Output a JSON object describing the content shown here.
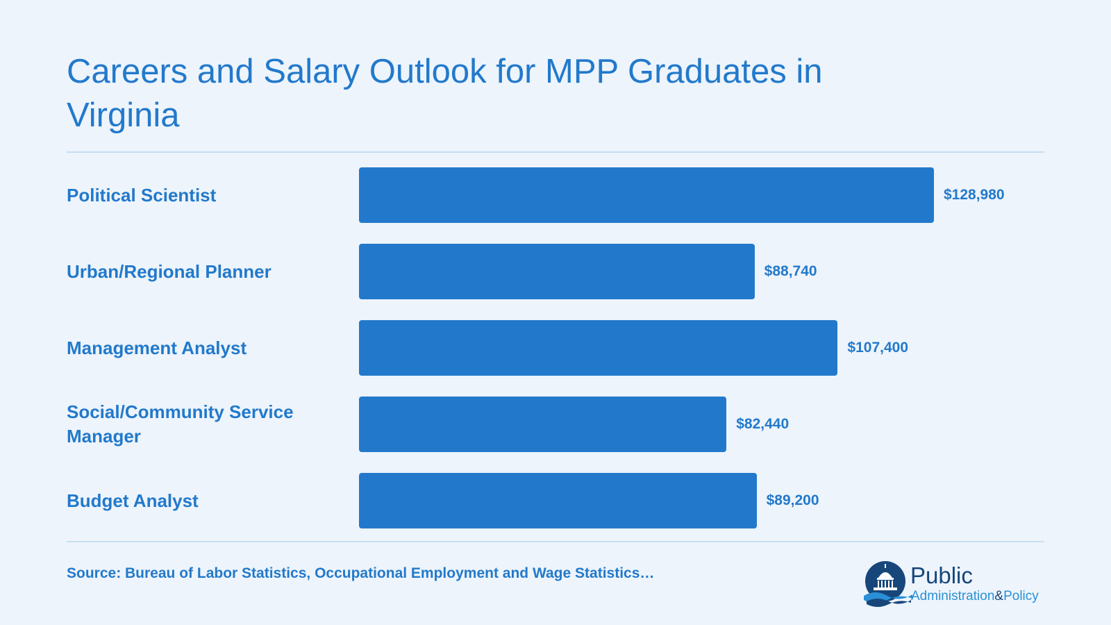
{
  "chart_data": {
    "type": "bar",
    "orientation": "horizontal",
    "title": "Careers and Salary Outlook for MPP Graduates in Virginia",
    "categories": [
      "Political Scientist",
      "Urban/Regional Planner",
      "Management Analyst",
      "Social/Community Service Manager",
      "Budget Analyst"
    ],
    "values": [
      128980,
      88740,
      107400,
      82440,
      89200
    ],
    "value_labels": [
      "$128,980",
      "$88,740",
      "$107,400",
      "$82,440",
      "$89,200"
    ],
    "xlim": [
      0,
      128980
    ],
    "grid": false,
    "legend": "none",
    "bar_color": "#2279CB"
  },
  "footer": {
    "source": "Source: Bureau of Labor Statistics, Occupational Employment and Wage Statistics…"
  },
  "logo": {
    "icon": "capitol-dome-icon",
    "public": "Public",
    "administration": "Administration",
    "amp": "&",
    "policy": "Policy"
  },
  "colors": {
    "background": "#EDF4FB",
    "accent": "#2279CB",
    "rule": "#C8DDF1",
    "logo_dark": "#17467A"
  }
}
